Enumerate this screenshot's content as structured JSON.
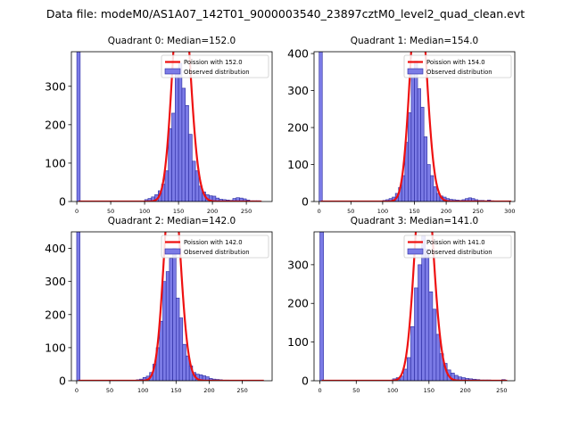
{
  "suptitle": "Data file: modeM0/AS1A07_142T01_9000003540_23897cztM0_level2_quad_clean.evt",
  "colors": {
    "bar_fill": "#7b7be6",
    "bar_edge": "#2a2aa0",
    "poisson_line": "#ee1111",
    "axis": "#000000"
  },
  "chart_data": [
    {
      "type": "bar",
      "title": "Quadrant 0: Median=152.0",
      "xlabel": "",
      "ylabel": "",
      "xlim": [
        -8,
        288
      ],
      "ylim": [
        0,
        390
      ],
      "xticks": [
        0,
        50,
        100,
        150,
        200,
        250
      ],
      "yticks": [
        0,
        100,
        200,
        300
      ],
      "legend_position": "top-right",
      "series": [
        {
          "name": "Poission with 152.0",
          "kind": "line",
          "mu": 152.0,
          "total": 3800,
          "x_range": [
            0,
            270
          ]
        },
        {
          "name": "Observed distribution",
          "kind": "histogram",
          "bin_width": 5,
          "bins": [
            [
              0,
              5,
              390
            ],
            [
              100,
              105,
              5
            ],
            [
              105,
              110,
              8
            ],
            [
              110,
              115,
              12
            ],
            [
              115,
              120,
              18
            ],
            [
              120,
              125,
              28
            ],
            [
              125,
              130,
              45
            ],
            [
              130,
              135,
              80
            ],
            [
              135,
              140,
              190
            ],
            [
              140,
              145,
              230
            ],
            [
              145,
              150,
              330
            ],
            [
              150,
              155,
              360
            ],
            [
              155,
              160,
              295
            ],
            [
              160,
              165,
              250
            ],
            [
              165,
              170,
              175
            ],
            [
              170,
              175,
              105
            ],
            [
              175,
              180,
              80
            ],
            [
              180,
              185,
              40
            ],
            [
              185,
              190,
              25
            ],
            [
              190,
              195,
              18
            ],
            [
              195,
              200,
              15
            ],
            [
              200,
              205,
              14
            ],
            [
              205,
              210,
              9
            ],
            [
              210,
              215,
              6
            ],
            [
              215,
              220,
              5
            ],
            [
              220,
              225,
              4
            ],
            [
              225,
              230,
              3
            ],
            [
              230,
              235,
              8
            ],
            [
              235,
              240,
              10
            ],
            [
              240,
              245,
              9
            ],
            [
              245,
              250,
              7
            ],
            [
              250,
              255,
              4
            ],
            [
              255,
              260,
              2
            ],
            [
              260,
              265,
              2
            ],
            [
              265,
              270,
              2
            ]
          ]
        }
      ]
    },
    {
      "type": "bar",
      "title": "Quadrant 1: Median=154.0",
      "xlabel": "",
      "ylabel": "",
      "xlim": [
        -8,
        308
      ],
      "ylim": [
        0,
        405
      ],
      "xticks": [
        0,
        50,
        100,
        150,
        200,
        250,
        300
      ],
      "yticks": [
        0,
        100,
        200,
        300,
        400
      ],
      "legend_position": "top-right",
      "series": [
        {
          "name": "Poission with 154.0",
          "kind": "line",
          "mu": 154.0,
          "total": 3800,
          "x_range": [
            0,
            300
          ]
        },
        {
          "name": "Observed distribution",
          "kind": "histogram",
          "bin_width": 5,
          "bins": [
            [
              0,
              5,
              405
            ],
            [
              100,
              105,
              3
            ],
            [
              105,
              110,
              5
            ],
            [
              110,
              115,
              8
            ],
            [
              115,
              120,
              12
            ],
            [
              120,
              125,
              22
            ],
            [
              125,
              130,
              38
            ],
            [
              130,
              135,
              70
            ],
            [
              135,
              140,
              160
            ],
            [
              140,
              145,
              240
            ],
            [
              145,
              150,
              350
            ],
            [
              150,
              155,
              380
            ],
            [
              155,
              160,
              305
            ],
            [
              160,
              165,
              255
            ],
            [
              165,
              170,
              175
            ],
            [
              170,
              175,
              100
            ],
            [
              175,
              180,
              70
            ],
            [
              180,
              185,
              40
            ],
            [
              185,
              190,
              22
            ],
            [
              190,
              195,
              15
            ],
            [
              195,
              200,
              12
            ],
            [
              200,
              205,
              8
            ],
            [
              205,
              210,
              6
            ],
            [
              210,
              215,
              5
            ],
            [
              215,
              220,
              4
            ],
            [
              220,
              225,
              3
            ],
            [
              225,
              230,
              5
            ],
            [
              230,
              235,
              8
            ],
            [
              235,
              240,
              10
            ],
            [
              240,
              245,
              8
            ],
            [
              245,
              250,
              5
            ],
            [
              250,
              255,
              3
            ],
            [
              255,
              260,
              3
            ],
            [
              260,
              265,
              2
            ],
            [
              265,
              270,
              4
            ],
            [
              270,
              275,
              2
            ]
          ]
        }
      ]
    },
    {
      "type": "bar",
      "title": "Quadrant 2: Median=142.0",
      "xlabel": "",
      "ylabel": "",
      "xlim": [
        -8,
        295
      ],
      "ylim": [
        0,
        450
      ],
      "xticks": [
        0,
        50,
        100,
        150,
        200,
        250
      ],
      "yticks": [
        0,
        100,
        200,
        300,
        400
      ],
      "legend_position": "top-right",
      "series": [
        {
          "name": "Poission with 142.0",
          "kind": "line",
          "mu": 142.0,
          "total": 3850,
          "x_range": [
            0,
            280
          ]
        },
        {
          "name": "Observed distribution",
          "kind": "histogram",
          "bin_width": 5,
          "bins": [
            [
              0,
              5,
              450
            ],
            [
              90,
              95,
              3
            ],
            [
              95,
              100,
              5
            ],
            [
              100,
              105,
              10
            ],
            [
              105,
              110,
              14
            ],
            [
              110,
              115,
              25
            ],
            [
              115,
              120,
              50
            ],
            [
              120,
              125,
              100
            ],
            [
              125,
              130,
              180
            ],
            [
              130,
              135,
              300
            ],
            [
              135,
              140,
              330
            ],
            [
              140,
              145,
              370
            ],
            [
              145,
              150,
              400
            ],
            [
              150,
              155,
              250
            ],
            [
              155,
              160,
              190
            ],
            [
              160,
              165,
              110
            ],
            [
              165,
              170,
              75
            ],
            [
              170,
              175,
              45
            ],
            [
              175,
              180,
              25
            ],
            [
              180,
              185,
              20
            ],
            [
              185,
              190,
              18
            ],
            [
              190,
              195,
              15
            ],
            [
              195,
              200,
              12
            ],
            [
              200,
              205,
              7
            ],
            [
              205,
              210,
              5
            ],
            [
              210,
              215,
              4
            ],
            [
              215,
              220,
              3
            ],
            [
              220,
              225,
              2
            ],
            [
              225,
              230,
              2
            ]
          ]
        }
      ]
    },
    {
      "type": "bar",
      "title": "Quadrant 3: Median=141.0",
      "xlabel": "",
      "ylabel": "",
      "xlim": [
        -8,
        268
      ],
      "ylim": [
        0,
        385
      ],
      "xticks": [
        0,
        50,
        100,
        150,
        200,
        250
      ],
      "yticks": [
        0,
        100,
        200,
        300
      ],
      "legend_position": "top-right",
      "series": [
        {
          "name": "Poission with 141.0",
          "kind": "line",
          "mu": 141.0,
          "total": 3600,
          "x_range": [
            0,
            255
          ]
        },
        {
          "name": "Observed distribution",
          "kind": "histogram",
          "bin_width": 5,
          "bins": [
            [
              0,
              5,
              385
            ],
            [
              100,
              105,
              5
            ],
            [
              105,
              110,
              8
            ],
            [
              110,
              115,
              12
            ],
            [
              115,
              120,
              30
            ],
            [
              120,
              125,
              60
            ],
            [
              125,
              130,
              140
            ],
            [
              130,
              135,
              240
            ],
            [
              135,
              140,
              300
            ],
            [
              140,
              145,
              375
            ],
            [
              145,
              150,
              340
            ],
            [
              150,
              155,
              230
            ],
            [
              155,
              160,
              185
            ],
            [
              160,
              165,
              120
            ],
            [
              165,
              170,
              70
            ],
            [
              170,
              175,
              45
            ],
            [
              175,
              180,
              28
            ],
            [
              180,
              185,
              20
            ],
            [
              185,
              190,
              14
            ],
            [
              190,
              195,
              10
            ],
            [
              195,
              200,
              8
            ],
            [
              200,
              205,
              6
            ],
            [
              205,
              210,
              5
            ],
            [
              210,
              215,
              4
            ],
            [
              215,
              220,
              3
            ],
            [
              220,
              225,
              2
            ],
            [
              225,
              230,
              2
            ],
            [
              230,
              235,
              2
            ],
            [
              235,
              240,
              1
            ],
            [
              240,
              245,
              1
            ],
            [
              245,
              250,
              1
            ],
            [
              250,
              255,
              3
            ]
          ]
        }
      ]
    }
  ]
}
